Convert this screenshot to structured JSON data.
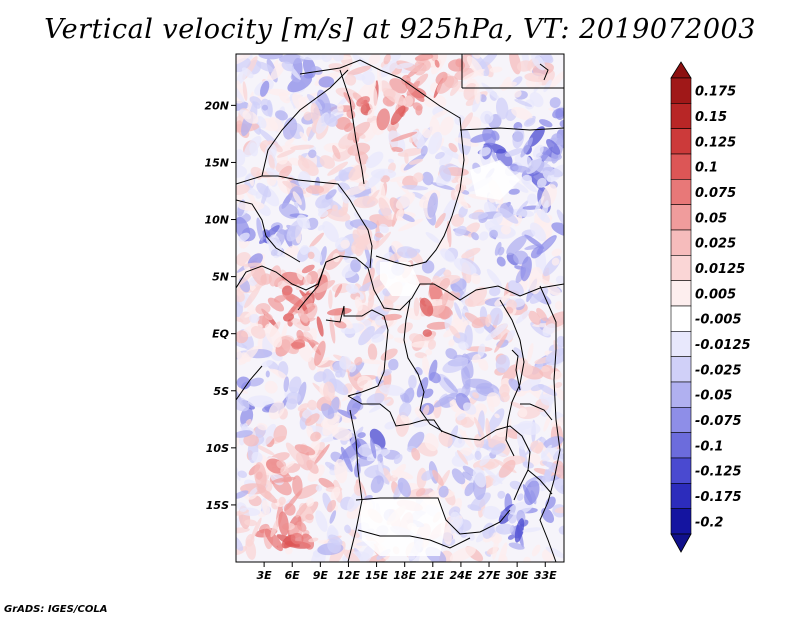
{
  "title": "Vertical velocity [m/s] at 925hPa, VT: 2019072003",
  "credit": "GrADS: IGES/COLA",
  "map": {
    "lat_ticks": [
      "20N",
      "15N",
      "10N",
      "5N",
      "EQ",
      "5S",
      "10S",
      "15S"
    ],
    "lat_values": [
      20,
      15,
      10,
      5,
      0,
      -5,
      -10,
      -15
    ],
    "lon_ticks": [
      "3E",
      "6E",
      "9E",
      "12E",
      "15E",
      "18E",
      "21E",
      "24E",
      "27E",
      "30E",
      "33E"
    ],
    "lon_values": [
      3,
      6,
      9,
      12,
      15,
      18,
      21,
      24,
      27,
      30,
      33
    ],
    "lon_range": [
      0,
      35
    ],
    "lat_range": [
      -20,
      24.5
    ]
  },
  "colorbar": {
    "labels": [
      "0.175",
      "0.15",
      "0.125",
      "0.1",
      "0.075",
      "0.05",
      "0.025",
      "0.0125",
      "0.005",
      "-0.005",
      "-0.0125",
      "-0.025",
      "-0.05",
      "-0.075",
      "-0.1",
      "-0.125",
      "-0.175",
      "-0.2"
    ],
    "colors": [
      "#a01818",
      "#b82626",
      "#cc3a3a",
      "#dc5656",
      "#e87878",
      "#f09c9c",
      "#f6bcbc",
      "#fad6d6",
      "#fdeeee",
      "#ffffff",
      "#e8e8fc",
      "#d0d0f8",
      "#b0b0f0",
      "#8e8ee8",
      "#6c6cdc",
      "#4a4ad0",
      "#2c2cbc",
      "#1414a0"
    ],
    "top_color": "#8c1010",
    "bottom_color": "#10108c"
  }
}
